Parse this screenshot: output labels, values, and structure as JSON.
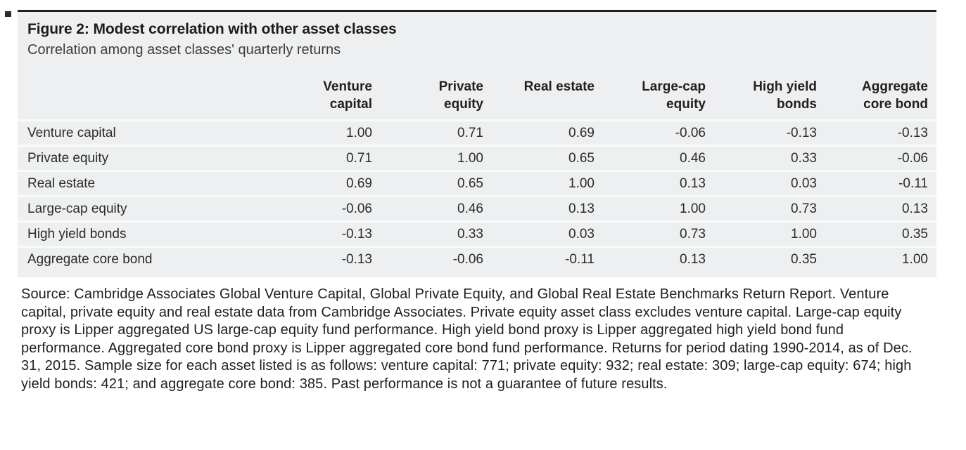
{
  "figure": {
    "title": "Figure 2: Modest correlation with other asset classes",
    "subtitle": "Correlation among asset classes' quarterly returns"
  },
  "table_ui": {
    "col_headers": [
      "Venture\ncapital",
      "Private\nequity",
      "Real estate",
      "Large-cap\nequity",
      "High yield\nbonds",
      "Aggregate\ncore bond"
    ]
  },
  "chart_data": {
    "type": "table",
    "title": "Figure 2: Modest correlation with other asset classes",
    "subtitle": "Correlation among asset classes' quarterly returns",
    "columns": [
      "Venture capital",
      "Private equity",
      "Real estate",
      "Large-cap equity",
      "High yield bonds",
      "Aggregate core bond"
    ],
    "rows": [
      {
        "label": "Venture capital",
        "values": [
          "1.00",
          "0.71",
          "0.69",
          "-0.06",
          "-0.13",
          "-0.13"
        ]
      },
      {
        "label": "Private equity",
        "values": [
          "0.71",
          "1.00",
          "0.65",
          "0.46",
          "0.33",
          "-0.06"
        ]
      },
      {
        "label": "Real estate",
        "values": [
          "0.69",
          "0.65",
          "1.00",
          "0.13",
          "0.03",
          "-0.11"
        ]
      },
      {
        "label": "Large-cap equity",
        "values": [
          "-0.06",
          "0.46",
          "0.13",
          "1.00",
          "0.73",
          "0.13"
        ]
      },
      {
        "label": "High yield bonds",
        "values": [
          "-0.13",
          "0.33",
          "0.03",
          "0.73",
          "1.00",
          "0.35"
        ]
      },
      {
        "label": "Aggregate core bond",
        "values": [
          "-0.13",
          "-0.06",
          "-0.11",
          "0.13",
          "0.35",
          "1.00"
        ]
      }
    ]
  },
  "footnote": {
    "text": "Source: Cambridge Associates Global Venture Capital, Global Private Equity, and Global Real Estate Benchmarks Return Report. Venture capital, private equity and real estate data from Cambridge Associates. Private equity asset class excludes venture capital. Large-cap equity proxy is Lipper aggregated US large-cap equity fund performance. High yield bond proxy is Lipper aggregated high yield bond fund performance. Aggregated core bond proxy is Lipper aggregated core bond fund performance. Returns for period dating 1990-2014, as of Dec. 31, 2015. Sample size for each asset listed is as follows: venture capital: 771; private equity: 932; real estate: 309; large-cap equity: 674; high yield bonds: 421; and aggregate core bond: 385. Past performance is not a guarantee of future results."
  },
  "colors": {
    "figure_background": "#eeeff0",
    "top_rule": "#231f20",
    "row_divider": "#f9fafa",
    "title_text": "#1b1b1b",
    "body_text": "#2b2b2b"
  }
}
